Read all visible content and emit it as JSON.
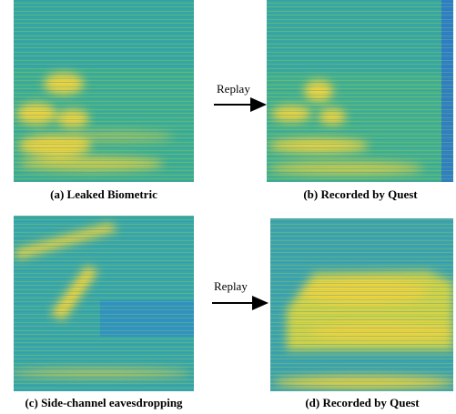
{
  "panels": [
    {
      "caption": "(a) Leaked Biometric"
    },
    {
      "caption": "(b) Recorded by Quest"
    },
    {
      "caption": "(c) Side-channel eavesdropping"
    },
    {
      "caption": "(d) Recorded by Quest"
    }
  ],
  "arrows": [
    {
      "label": "Replay"
    },
    {
      "label": "Replay"
    }
  ]
}
